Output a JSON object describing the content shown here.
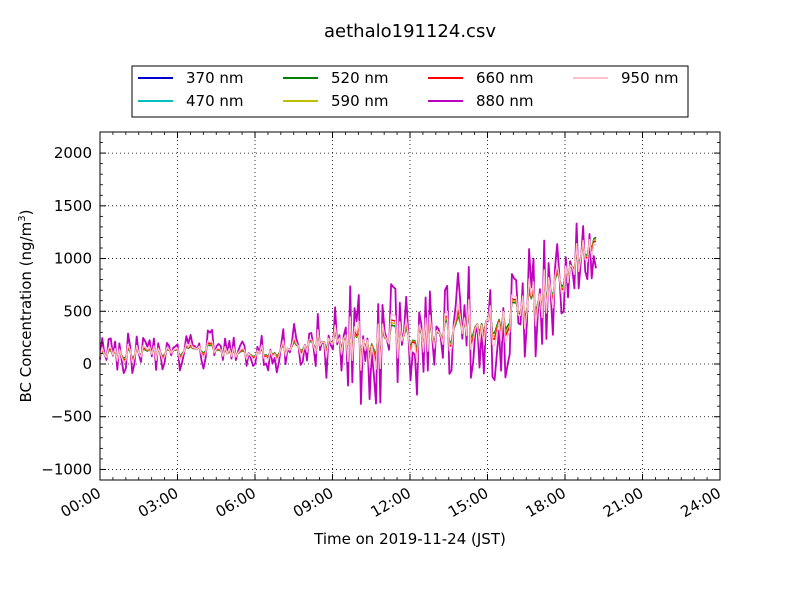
{
  "chart_data": {
    "type": "line",
    "title": "aethalo191124.csv",
    "xlabel": "Time on 2019-11-24 (JST)",
    "ylabel_main": "BC Concentration (ng/m",
    "ylabel_sup": "3",
    "ylabel_close": ")",
    "x_unit": "hours",
    "xlim": [
      0,
      24
    ],
    "ylim": [
      -1100,
      2200
    ],
    "x_ticks": [
      0,
      3,
      6,
      9,
      12,
      15,
      18,
      21,
      24
    ],
    "x_tick_labels": [
      "00:00",
      "03:00",
      "06:00",
      "09:00",
      "12:00",
      "15:00",
      "18:00",
      "21:00",
      "24:00"
    ],
    "y_ticks": [
      -1000,
      -500,
      0,
      500,
      1000,
      1500,
      2000
    ],
    "y_tick_labels": [
      "−1000",
      "−500",
      "0",
      "500",
      "1000",
      "1500",
      "2000"
    ],
    "grid": true,
    "legend_position": "top-center",
    "data_end_hour": 19.2,
    "series": [
      {
        "name": "370 nm",
        "color": "#0000cc",
        "noise": 0.25
      },
      {
        "name": "470 nm",
        "color": "#00bfbf",
        "noise": 0.25
      },
      {
        "name": "520 nm",
        "color": "#008000",
        "noise": 0.25
      },
      {
        "name": "590 nm",
        "color": "#bfbf00",
        "noise": 0.3
      },
      {
        "name": "660 nm",
        "color": "#ff0000",
        "noise": 0.35
      },
      {
        "name": "880 nm",
        "color": "#bf00bf",
        "noise": 1.0
      },
      {
        "name": "950 nm",
        "color": "#ffc0cb",
        "noise": 0.45
      }
    ],
    "baseline": {
      "hours": [
        0,
        1,
        2,
        3,
        4,
        5,
        6,
        7,
        8,
        9,
        10,
        11,
        12,
        13,
        14,
        15,
        16,
        17,
        18,
        19,
        19.2
      ],
      "values": [
        80,
        100,
        110,
        120,
        150,
        90,
        100,
        130,
        180,
        230,
        200,
        230,
        260,
        280,
        330,
        420,
        500,
        620,
        850,
        1150,
        1300
      ]
    },
    "amplitude": {
      "hours": [
        0,
        3,
        6,
        8,
        9,
        11,
        14,
        16,
        18,
        19.2
      ],
      "values": [
        180,
        220,
        170,
        260,
        580,
        600,
        560,
        620,
        520,
        450
      ]
    }
  }
}
